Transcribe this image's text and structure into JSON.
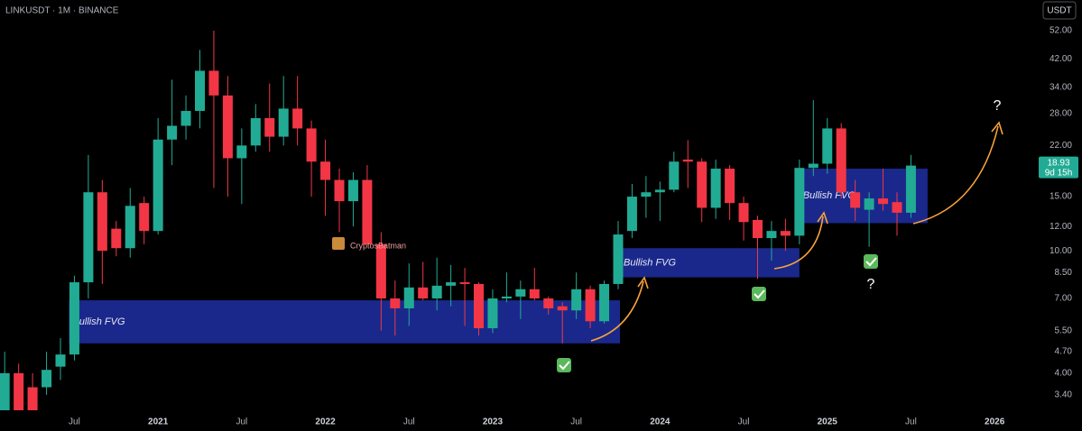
{
  "chart_data": {
    "type": "candlestick",
    "title": "LINKUSDT · 1M · BINANCE",
    "currency_button": "USDT",
    "log_scale": true,
    "grid": false,
    "up_color": "#22ab94",
    "down_color": "#f23645",
    "zone_color": "#1f2fa3",
    "categories": [
      null,
      null,
      null,
      null,
      null,
      "Jul",
      null,
      null,
      null,
      null,
      null,
      "2021",
      null,
      null,
      null,
      null,
      null,
      "Jul",
      null,
      null,
      null,
      null,
      null,
      "2022",
      null,
      null,
      null,
      null,
      null,
      "Jul",
      null,
      null,
      null,
      null,
      null,
      "2023",
      null,
      null,
      null,
      null,
      null,
      "Jul",
      null,
      null,
      null,
      null,
      null,
      "2024",
      null,
      null,
      null,
      null,
      null,
      "Jul",
      null,
      null,
      null,
      null,
      null,
      "2025",
      null,
      null,
      null,
      null,
      null,
      "Jul",
      null,
      null,
      null,
      null,
      null,
      "2026"
    ],
    "open": [
      3.0,
      4.0,
      3.6,
      3.6,
      4.2,
      4.6,
      7.9,
      15.5,
      11.8,
      10.2,
      14.3,
      11.6,
      23,
      25.5,
      28.5,
      38.5,
      32,
      20,
      22,
      27,
      23.5,
      29,
      25,
      19.5,
      17,
      14.5,
      17,
      10.5,
      7.0,
      6.5,
      7.6,
      7.0,
      7.7,
      7.9,
      7.8,
      5.6,
      7.0,
      7.1,
      7.5,
      7.0,
      6.6,
      6.4,
      7.5,
      5.9,
      7.8,
      11.6,
      15.0,
      15.5,
      15.8,
      19.8,
      19.5,
      13.8,
      18.5,
      14.3,
      12.6,
      11.0,
      11.6,
      11.2,
      18.6,
      19.2,
      25,
      15.5,
      13.6,
      14.8,
      14.4,
      13.3,
      null,
      null,
      null,
      null,
      null,
      null
    ],
    "high": [
      4.7,
      4.3,
      4.0,
      4.7,
      5.2,
      8.3,
      20.5,
      17,
      12.5,
      16,
      15,
      27,
      36,
      32,
      45,
      52,
      37,
      25,
      30,
      35,
      37,
      37,
      26.5,
      23,
      18.5,
      18,
      19,
      11.5,
      8.0,
      9.1,
      9.2,
      9.5,
      9.0,
      8.8,
      7.9,
      7.5,
      8.5,
      8.0,
      8.8,
      7.1,
      6.8,
      8.5,
      7.7,
      8.0,
      12.5,
      16.5,
      17.5,
      16.8,
      21,
      22.9,
      20,
      19.8,
      19,
      15,
      13,
      12.5,
      12.7,
      19.8,
      30.9,
      27,
      26,
      17,
      15.5,
      18.5,
      15.5,
      20.5,
      null,
      null,
      null,
      null,
      null,
      null
    ],
    "low": [
      2.6,
      2.5,
      2.7,
      3.4,
      3.8,
      4.4,
      7.0,
      7.8,
      9.6,
      9.5,
      10.5,
      11.3,
      19,
      23,
      25,
      16,
      15,
      14.2,
      21,
      21,
      22,
      22,
      15,
      13,
      11.5,
      12,
      10.5,
      5.5,
      5.3,
      5.7,
      6.9,
      6.4,
      6.6,
      5.7,
      5.3,
      5.4,
      6.8,
      6.0,
      6.9,
      6.2,
      5.0,
      6.0,
      5.6,
      5.8,
      7.5,
      11,
      12.8,
      12.5,
      15.5,
      16,
      12.4,
      12.7,
      12.6,
      10.8,
      8.1,
      9.3,
      10,
      10.5,
      17.5,
      17.8,
      14.8,
      12.5,
      10.3,
      13.5,
      11.2,
      12.8,
      null,
      null,
      null,
      null,
      null,
      null
    ],
    "close": [
      4.0,
      2.8,
      3.0,
      4.1,
      4.6,
      7.9,
      15.5,
      10,
      10.2,
      14.0,
      11.6,
      23,
      25.5,
      28.5,
      38.5,
      32,
      20,
      22,
      27,
      23.5,
      29,
      25,
      19.5,
      17,
      14.5,
      17,
      10.5,
      7.0,
      6.5,
      7.6,
      7.0,
      7.7,
      7.9,
      7.8,
      5.6,
      7.0,
      7.1,
      7.5,
      7.0,
      6.5,
      6.4,
      7.5,
      5.9,
      7.8,
      11.3,
      15.0,
      15.5,
      15.8,
      19.5,
      19.5,
      13.8,
      18.5,
      14.3,
      12.4,
      11.0,
      11.6,
      11.2,
      18.6,
      19.2,
      25,
      15.5,
      13.8,
      14.8,
      14.2,
      13.3,
      18.93,
      null,
      null,
      null,
      null,
      null,
      null
    ],
    "ylim": [
      3.03,
      65.4
    ],
    "yticks": [
      {
        "value": 52,
        "label": "52.00"
      },
      {
        "value": 42,
        "label": "42.00"
      },
      {
        "value": 34,
        "label": "34.00"
      },
      {
        "value": 28,
        "label": "28.00"
      },
      {
        "value": 22,
        "label": "22.00"
      },
      {
        "value": 15,
        "label": "15.00"
      },
      {
        "value": 12,
        "label": "12.00"
      },
      {
        "value": 10,
        "label": "10.00"
      },
      {
        "value": 8.5,
        "label": "8.50"
      },
      {
        "value": 7,
        "label": "7.00"
      },
      {
        "value": 5.5,
        "label": "5.50"
      },
      {
        "value": 4.7,
        "label": "4.70"
      },
      {
        "value": 4,
        "label": "4.00"
      },
      {
        "value": 3.4,
        "label": "3.40"
      }
    ],
    "countdown": "9d 15h",
    "zones": [
      {
        "label": "Bullish FVG",
        "low": 5.0,
        "high": 6.9
      },
      {
        "label": "Bullish FVG",
        "low": 8.2,
        "high": 10.2
      },
      {
        "label": "Bullish FVG",
        "low": 12.3,
        "high": 18.5
      }
    ],
    "watermark": "CryptosBatman",
    "question_marks": [
      "?",
      "?"
    ]
  }
}
